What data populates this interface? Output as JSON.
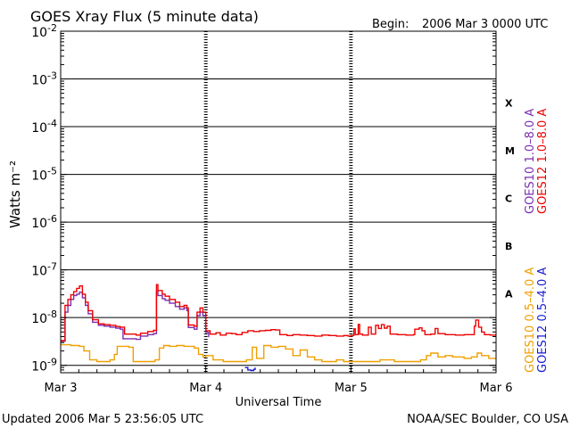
{
  "header": {
    "title": "GOES Xray Flux (5 minute data)",
    "begin_label": "Begin:",
    "begin_value": "2006 Mar 3 0000 UTC"
  },
  "footer": {
    "updated": "Updated 2006 Mar  5 23:56:05 UTC",
    "credit": "NOAA/SEC Boulder, CO USA"
  },
  "chart_data": {
    "type": "line",
    "title": "GOES Xray Flux (5 minute data)",
    "xlabel": "Universal Time",
    "ylabel": "Watts m⁻²",
    "yscale": "log",
    "ylim": [
      7e-10,
      0.01
    ],
    "xlim": [
      0,
      3
    ],
    "x_unit": "days since 2006 Mar 3 0000 UTC",
    "x_ticks": [
      {
        "x": 0,
        "label": "Mar 3"
      },
      {
        "x": 1,
        "label": "Mar 4"
      },
      {
        "x": 2,
        "label": "Mar 5"
      },
      {
        "x": 3,
        "label": "Mar 6"
      }
    ],
    "y_ticks": [
      {
        "exp": -2,
        "label_base": "10",
        "label_exp": "-2"
      },
      {
        "exp": -3,
        "label_base": "10",
        "label_exp": "-3"
      },
      {
        "exp": -4,
        "label_base": "10",
        "label_exp": "-4"
      },
      {
        "exp": -5,
        "label_base": "10",
        "label_exp": "-5"
      },
      {
        "exp": -6,
        "label_base": "10",
        "label_exp": "-6"
      },
      {
        "exp": -7,
        "label_base": "10",
        "label_exp": "-7"
      },
      {
        "exp": -8,
        "label_base": "10",
        "label_exp": "-8"
      },
      {
        "exp": -9,
        "label_base": "10",
        "label_exp": "-9"
      }
    ],
    "flare_classes": [
      {
        "label": "X",
        "lo": 0.0001,
        "hi": 0.001
      },
      {
        "label": "M",
        "lo": 1e-05,
        "hi": 0.0001
      },
      {
        "label": "C",
        "lo": 1e-06,
        "hi": 1e-05
      },
      {
        "label": "B",
        "lo": 1e-07,
        "hi": 1e-06
      },
      {
        "label": "A",
        "lo": 1e-08,
        "hi": 1e-07
      }
    ],
    "grid": {
      "horizontal_decades": true,
      "day_dividers": "dashed"
    },
    "legend_placement": "right-vertical",
    "series": [
      {
        "name": "GOES10 1.0–8.0 A",
        "color": "#7a2fb0",
        "points": [
          [
            0.0,
            3.2e-09
          ],
          [
            0.02,
            3.2e-09
          ],
          [
            0.03,
            1.3e-08
          ],
          [
            0.05,
            1.8e-08
          ],
          [
            0.07,
            2.4e-08
          ],
          [
            0.09,
            2.9e-08
          ],
          [
            0.11,
            3.1e-08
          ],
          [
            0.13,
            3.4e-08
          ],
          [
            0.15,
            2.6e-08
          ],
          [
            0.17,
            1.8e-08
          ],
          [
            0.19,
            1.2e-08
          ],
          [
            0.22,
            8e-09
          ],
          [
            0.26,
            6.9e-09
          ],
          [
            0.3,
            6.6e-09
          ],
          [
            0.34,
            6.3e-09
          ],
          [
            0.38,
            6e-09
          ],
          [
            0.41,
            5.7e-09
          ],
          [
            0.43,
            3.6e-09
          ],
          [
            0.5,
            3.6e-09
          ],
          [
            0.52,
            3.5e-09
          ],
          [
            0.55,
            4.1e-09
          ],
          [
            0.6,
            4.4e-09
          ],
          [
            0.64,
            4.6e-09
          ],
          [
            0.66,
            3.5e-08
          ],
          [
            0.67,
            2.9e-08
          ],
          [
            0.7,
            2.5e-08
          ],
          [
            0.72,
            2.3e-08
          ],
          [
            0.75,
            2e-08
          ],
          [
            0.79,
            1.7e-08
          ],
          [
            0.82,
            1.5e-08
          ],
          [
            0.85,
            1.6e-08
          ],
          [
            0.87,
            1.4e-08
          ],
          [
            0.88,
            6.2e-09
          ],
          [
            0.92,
            5.7e-09
          ],
          [
            0.94,
            1.1e-08
          ],
          [
            0.96,
            1.3e-08
          ],
          [
            0.98,
            1.1e-08
          ],
          [
            1.0,
            4.9e-09
          ],
          [
            1.02,
            3.9e-09
          ]
        ]
      },
      {
        "name": "GOES12 1.0–8.0 A",
        "color": "#ee0000",
        "points": [
          [
            0.0,
            3.3e-09
          ],
          [
            0.02,
            3.3e-09
          ],
          [
            0.03,
            1.8e-08
          ],
          [
            0.05,
            2.4e-08
          ],
          [
            0.07,
            3e-08
          ],
          [
            0.09,
            3.5e-08
          ],
          [
            0.11,
            4.1e-08
          ],
          [
            0.13,
            4.6e-08
          ],
          [
            0.15,
            3.1e-08
          ],
          [
            0.17,
            2.1e-08
          ],
          [
            0.19,
            1.4e-08
          ],
          [
            0.22,
            9e-09
          ],
          [
            0.26,
            7.4e-09
          ],
          [
            0.3,
            7.1e-09
          ],
          [
            0.34,
            6.9e-09
          ],
          [
            0.38,
            6.5e-09
          ],
          [
            0.41,
            6.3e-09
          ],
          [
            0.44,
            4.5e-09
          ],
          [
            0.5,
            4.5e-09
          ],
          [
            0.52,
            4.3e-09
          ],
          [
            0.55,
            4.7e-09
          ],
          [
            0.6,
            5.1e-09
          ],
          [
            0.64,
            5.4e-09
          ],
          [
            0.66,
            4.9e-08
          ],
          [
            0.67,
            3.7e-08
          ],
          [
            0.7,
            3.1e-08
          ],
          [
            0.72,
            2.8e-08
          ],
          [
            0.75,
            2.4e-08
          ],
          [
            0.79,
            2.1e-08
          ],
          [
            0.82,
            1.7e-08
          ],
          [
            0.85,
            1.8e-08
          ],
          [
            0.87,
            1.6e-08
          ],
          [
            0.88,
            7e-09
          ],
          [
            0.92,
            6.6e-09
          ],
          [
            0.94,
            1.3e-08
          ],
          [
            0.96,
            1.6e-08
          ],
          [
            0.98,
            1.3e-08
          ],
          [
            1.0,
            5.3e-09
          ],
          [
            1.03,
            4.5e-09
          ],
          [
            1.07,
            4.8e-09
          ],
          [
            1.1,
            4.3e-09
          ],
          [
            1.14,
            4.7e-09
          ],
          [
            1.18,
            4.6e-09
          ],
          [
            1.21,
            4.4e-09
          ],
          [
            1.25,
            4.9e-09
          ],
          [
            1.29,
            5.3e-09
          ],
          [
            1.33,
            5.1e-09
          ],
          [
            1.37,
            5.3e-09
          ],
          [
            1.41,
            5.4e-09
          ],
          [
            1.45,
            5.6e-09
          ],
          [
            1.48,
            5.5e-09
          ],
          [
            1.51,
            4.4e-09
          ],
          [
            1.56,
            4.2e-09
          ],
          [
            1.6,
            4.4e-09
          ],
          [
            1.65,
            4.3e-09
          ],
          [
            1.7,
            4.2e-09
          ],
          [
            1.75,
            4.1e-09
          ],
          [
            1.8,
            4.3e-09
          ],
          [
            1.85,
            4.2e-09
          ],
          [
            1.9,
            4.1e-09
          ],
          [
            1.95,
            4.2e-09
          ],
          [
            1.98,
            4.1e-09
          ],
          [
            2.0,
            4.2e-09
          ],
          [
            2.02,
            5.8e-09
          ],
          [
            2.03,
            4.4e-09
          ],
          [
            2.05,
            7.2e-09
          ],
          [
            2.06,
            4.5e-09
          ],
          [
            2.08,
            4.3e-09
          ],
          [
            2.12,
            6.3e-09
          ],
          [
            2.14,
            4.5e-09
          ],
          [
            2.17,
            6.9e-09
          ],
          [
            2.19,
            5.9e-09
          ],
          [
            2.21,
            7.1e-09
          ],
          [
            2.23,
            6e-09
          ],
          [
            2.25,
            6.6e-09
          ],
          [
            2.27,
            4.5e-09
          ],
          [
            2.32,
            4.4e-09
          ],
          [
            2.38,
            4.3e-09
          ],
          [
            2.43,
            4.4e-09
          ],
          [
            2.44,
            5.7e-09
          ],
          [
            2.47,
            6.1e-09
          ],
          [
            2.49,
            5.3e-09
          ],
          [
            2.51,
            4.4e-09
          ],
          [
            2.55,
            4.5e-09
          ],
          [
            2.58,
            5.9e-09
          ],
          [
            2.6,
            4.6e-09
          ],
          [
            2.65,
            4.4e-09
          ],
          [
            2.72,
            4.3e-09
          ],
          [
            2.78,
            4.4e-09
          ],
          [
            2.83,
            4.4e-09
          ],
          [
            2.85,
            6.6e-09
          ],
          [
            2.86,
            8.9e-09
          ],
          [
            2.88,
            6.3e-09
          ],
          [
            2.9,
            5e-09
          ],
          [
            2.92,
            4.4e-09
          ],
          [
            2.96,
            4.3e-09
          ],
          [
            3.0,
            4.3e-09
          ]
        ]
      },
      {
        "name": "GOES10 0.5–4.0 A",
        "color": "#f0a000",
        "points": [
          [
            0.0,
            2.7e-09
          ],
          [
            0.03,
            2.7e-09
          ],
          [
            0.07,
            2.6e-09
          ],
          [
            0.1,
            2.6e-09
          ],
          [
            0.13,
            2.5e-09
          ],
          [
            0.16,
            2e-09
          ],
          [
            0.2,
            1.3e-09
          ],
          [
            0.25,
            1.2e-09
          ],
          [
            0.3,
            1.2e-09
          ],
          [
            0.34,
            1.3e-09
          ],
          [
            0.37,
            1.7e-09
          ],
          [
            0.39,
            2.5e-09
          ],
          [
            0.43,
            2.5e-09
          ],
          [
            0.47,
            2.4e-09
          ],
          [
            0.5,
            1.2e-09
          ],
          [
            0.55,
            1.2e-09
          ],
          [
            0.6,
            1.2e-09
          ],
          [
            0.65,
            1.3e-09
          ],
          [
            0.68,
            2.3e-09
          ],
          [
            0.71,
            2.6e-09
          ],
          [
            0.75,
            2.5e-09
          ],
          [
            0.8,
            2.6e-09
          ],
          [
            0.85,
            2.5e-09
          ],
          [
            0.88,
            2.5e-09
          ],
          [
            0.92,
            2.3e-09
          ],
          [
            0.95,
            1.7e-09
          ],
          [
            0.98,
            1.5e-09
          ],
          [
            1.0,
            1.6e-09
          ],
          [
            1.05,
            1.3e-09
          ],
          [
            1.12,
            1.2e-09
          ],
          [
            1.2,
            1.2e-09
          ],
          [
            1.28,
            1.3e-09
          ],
          [
            1.32,
            2.4e-09
          ],
          [
            1.35,
            1.4e-09
          ],
          [
            1.4,
            2.6e-09
          ],
          [
            1.45,
            2.4e-09
          ],
          [
            1.5,
            2.5e-09
          ],
          [
            1.55,
            2.2e-09
          ],
          [
            1.6,
            1.6e-09
          ],
          [
            1.65,
            2.1e-09
          ],
          [
            1.7,
            1.5e-09
          ],
          [
            1.75,
            1.3e-09
          ],
          [
            1.8,
            1.2e-09
          ],
          [
            1.85,
            1.2e-09
          ],
          [
            1.9,
            1.3e-09
          ],
          [
            1.95,
            1.2e-09
          ],
          [
            2.0,
            1.2e-09
          ],
          [
            2.05,
            1.2e-09
          ],
          [
            2.1,
            1.2e-09
          ],
          [
            2.2,
            1.3e-09
          ],
          [
            2.3,
            1.2e-09
          ],
          [
            2.4,
            1.2e-09
          ],
          [
            2.48,
            1.3e-09
          ],
          [
            2.52,
            1.6e-09
          ],
          [
            2.55,
            1.8e-09
          ],
          [
            2.6,
            1.5e-09
          ],
          [
            2.65,
            1.6e-09
          ],
          [
            2.7,
            1.5e-09
          ],
          [
            2.78,
            1.4e-09
          ],
          [
            2.83,
            1.5e-09
          ],
          [
            2.87,
            1.8e-09
          ],
          [
            2.9,
            1.6e-09
          ],
          [
            2.95,
            1.4e-09
          ],
          [
            3.0,
            1.4e-09
          ]
        ]
      },
      {
        "name": "GOES12 0.5–4.0 A",
        "color": "#1a1ad0",
        "points": [
          [
            1.27,
            9e-10
          ],
          [
            1.29,
            8e-10
          ],
          [
            1.31,
            7.8e-10
          ],
          [
            1.33,
            8.2e-10
          ],
          [
            1.34,
            9e-10
          ]
        ]
      }
    ]
  }
}
